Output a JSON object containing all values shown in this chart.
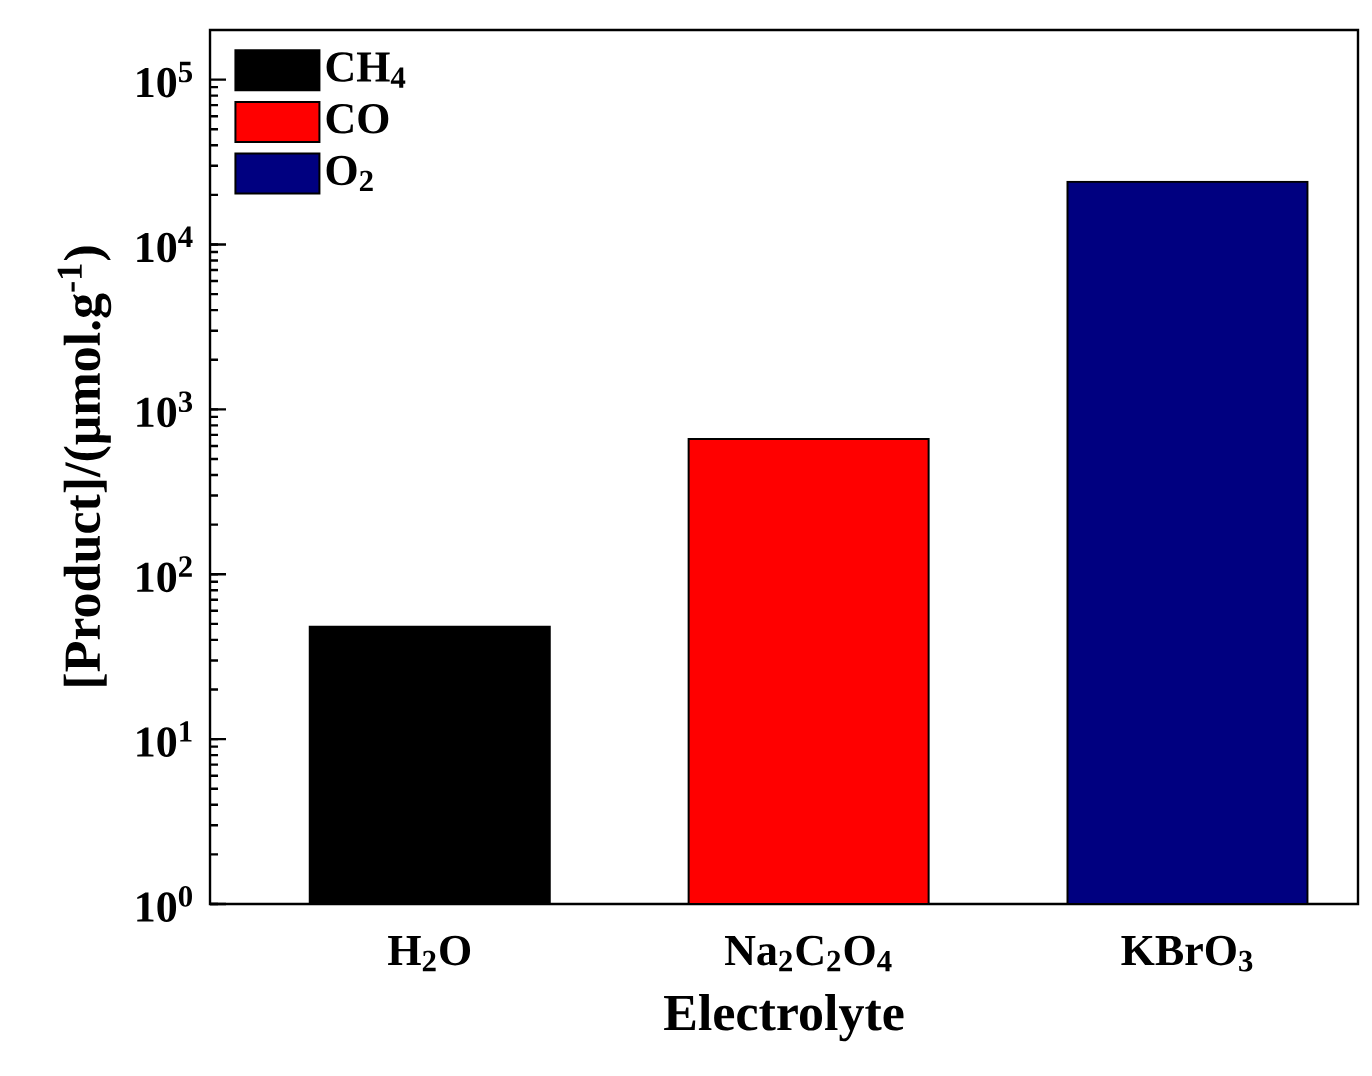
{
  "chart_data": {
    "type": "bar",
    "xlabel": "Electrolyte",
    "ylabel": "[Product]/(μmol.g$^{-1}$)",
    "categories": [
      "H$_{2}$O",
      "Na$_{2}$C$_{2}$O$_{4}$",
      "KBrO$_{3}$"
    ],
    "series": [
      {
        "name": "CH$_{4}$",
        "color": "#000000",
        "values": [
          48,
          null,
          null
        ]
      },
      {
        "name": "CO",
        "color": "#ff0000",
        "values": [
          null,
          660,
          null
        ]
      },
      {
        "name": "O$_{2}$",
        "color": "#000080",
        "values": [
          null,
          null,
          24000
        ]
      }
    ],
    "log": "y",
    "ylim": [
      1,
      200000
    ],
    "yticks": [
      {
        "value": 1,
        "label": "10$^{0}$"
      },
      {
        "value": 10,
        "label": "10$^{1}$"
      },
      {
        "value": 100,
        "label": "10$^{2}$"
      },
      {
        "value": 1000,
        "label": "10$^{3}$"
      },
      {
        "value": 10000,
        "label": "10$^{4}$"
      },
      {
        "value": 100000,
        "label": "10$^{5}$"
      }
    ],
    "legend": "top left"
  }
}
